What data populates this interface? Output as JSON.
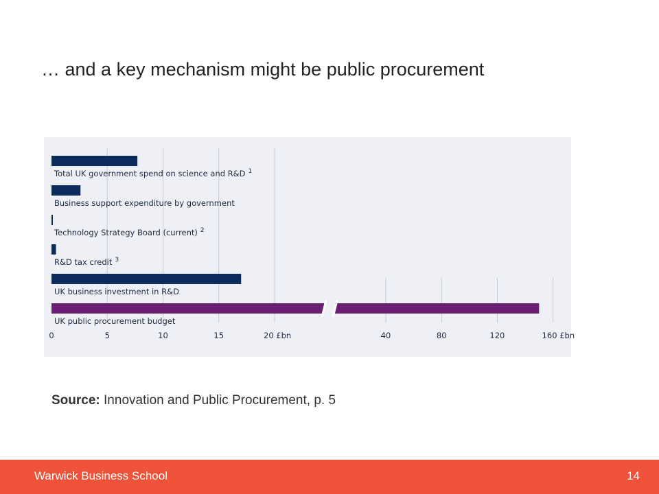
{
  "slide": {
    "title": "… and a key mechanism might be public procurement",
    "source_label": "Source:",
    "source_text": "Innovation and Public Procurement, p. 5",
    "footer_left": "Warwick Business School",
    "page_number": "14"
  },
  "colors": {
    "navy": "#0d2c5c",
    "purple": "#6b1f74",
    "panel_bg": "#eef0f5",
    "footer_bg": "#ee5238"
  },
  "chart_data": {
    "type": "bar",
    "orientation": "horizontal",
    "axis_break": "between 20 and 40 (£bn)",
    "ticks_left": [
      0,
      5,
      10,
      15,
      20
    ],
    "ticks_right": [
      40,
      80,
      120,
      160
    ],
    "tick_labels": [
      "0",
      "5",
      "10",
      "15",
      "20 £bn",
      "40",
      "80",
      "120",
      "160 £bn"
    ],
    "grid": true,
    "series": [
      {
        "label": "Total UK government spend on science and R&D",
        "sup": "1",
        "value": 7.7,
        "color": "navy"
      },
      {
        "label": "Business support expenditure by government",
        "sup": "",
        "value": 2.6,
        "color": "navy"
      },
      {
        "label": "Technology Strategy Board (current)",
        "sup": "2",
        "value": 0.1,
        "color": "navy"
      },
      {
        "label": "R&D tax credit",
        "sup": "3",
        "value": 0.4,
        "color": "navy"
      },
      {
        "label": "UK business investment in R&D",
        "sup": "",
        "value": 17,
        "color": "navy"
      },
      {
        "label": "UK public procurement budget",
        "sup": "",
        "value": 150,
        "color": "purple"
      }
    ]
  }
}
